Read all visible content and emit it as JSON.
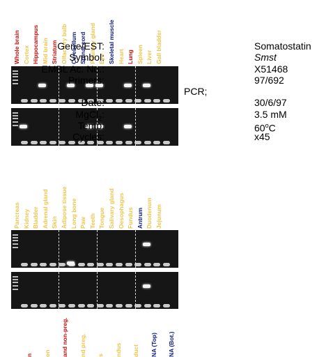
{
  "colors": {
    "brain": "#c81010",
    "peripheral": "#eec54a",
    "cns": "#0c1a82",
    "gel_bg": "#161616",
    "band": "#f4f4f4"
  },
  "panel1": {
    "lanes": [
      {
        "label": "Whole brain",
        "tone": "brain"
      },
      {
        "label": "Cortex",
        "tone": "peripheral"
      },
      {
        "label": "Hippocampus",
        "tone": "brain"
      },
      {
        "label": "Mid brain",
        "tone": "peripheral"
      },
      {
        "label": "Striatum",
        "tone": "brain"
      },
      {
        "label": "Olfactory bulb",
        "tone": "peripheral"
      },
      {
        "label": "Cerebellum",
        "tone": "cns"
      },
      {
        "label": "Spinal cord",
        "tone": "cns"
      },
      {
        "label": "Pituitary gland",
        "tone": "peripheral"
      },
      {
        "label": "Eye",
        "tone": "peripheral"
      },
      {
        "label": "Skeletal muscle",
        "tone": "cns"
      },
      {
        "label": "Heart",
        "tone": "peripheral"
      },
      {
        "label": "Lung",
        "tone": "brain"
      },
      {
        "label": "Spleen",
        "tone": "peripheral"
      },
      {
        "label": "Liver",
        "tone": "peripheral"
      },
      {
        "label": "Gall bladder",
        "tone": "peripheral"
      }
    ]
  },
  "panel2": {
    "lanes": [
      {
        "label": "Pancreas",
        "tone": "peripheral"
      },
      {
        "label": "Kidney",
        "tone": "peripheral"
      },
      {
        "label": "Bladder",
        "tone": "peripheral"
      },
      {
        "label": "Adrenal gland",
        "tone": "peripheral"
      },
      {
        "label": "Skin",
        "tone": "peripheral"
      },
      {
        "label": "Adipose tissue",
        "tone": "peripheral"
      },
      {
        "label": "Long bone",
        "tone": "peripheral"
      },
      {
        "label": "Paw",
        "tone": "peripheral"
      },
      {
        "label": "Teeth",
        "tone": "peripheral"
      },
      {
        "label": "Tongue",
        "tone": "peripheral"
      },
      {
        "label": "Salivary gland",
        "tone": "peripheral"
      },
      {
        "label": "Oesophagus",
        "tone": "peripheral"
      },
      {
        "label": "Fundus",
        "tone": "peripheral"
      },
      {
        "label": "Antrum",
        "tone": "cns"
      },
      {
        "label": "Duodenum",
        "tone": "peripheral"
      },
      {
        "label": "Jejunum",
        "tone": "peripheral"
      }
    ]
  },
  "panel3": {
    "lanes": [
      {
        "label": "n",
        "tone": "brain"
      },
      {
        "label": "on",
        "tone": "peripheral"
      },
      {
        "label": "and non-preg.",
        "tone": "brain"
      },
      {
        "label": "nd preg.",
        "tone": "peripheral"
      },
      {
        "label": "s",
        "tone": "peripheral"
      },
      {
        "label": "ndus",
        "tone": "peripheral"
      },
      {
        "label": "duct",
        "tone": "peripheral"
      },
      {
        "label": "NA (Top)",
        "tone": "cns"
      },
      {
        "label": "NA (Bot.)",
        "tone": "cns"
      }
    ]
  },
  "info": {
    "gene_label": "Gene/EST:",
    "gene_value": "Somatostatin",
    "symbol_label": "Symbol:",
    "symbol_value": "Smst",
    "embl_label": "EMBL Ac. No.:",
    "embl_value": "X51468",
    "primers_label": "Primers:",
    "primers_value": "97/692",
    "pcr_label": "PCR;",
    "date_label": "Date:",
    "date_value": "30/6/97",
    "mgcl_label_pre": "MgCl",
    "mgcl_label_sub": "2",
    "mgcl_label_post": ":",
    "mgcl_value": "3.5 mM",
    "temp_label": "Temp:",
    "temp_value_pre": "60",
    "temp_value_sup": "o",
    "temp_value_post": "C",
    "cycles_label": "Cycles:",
    "cycles_value": "x45"
  }
}
